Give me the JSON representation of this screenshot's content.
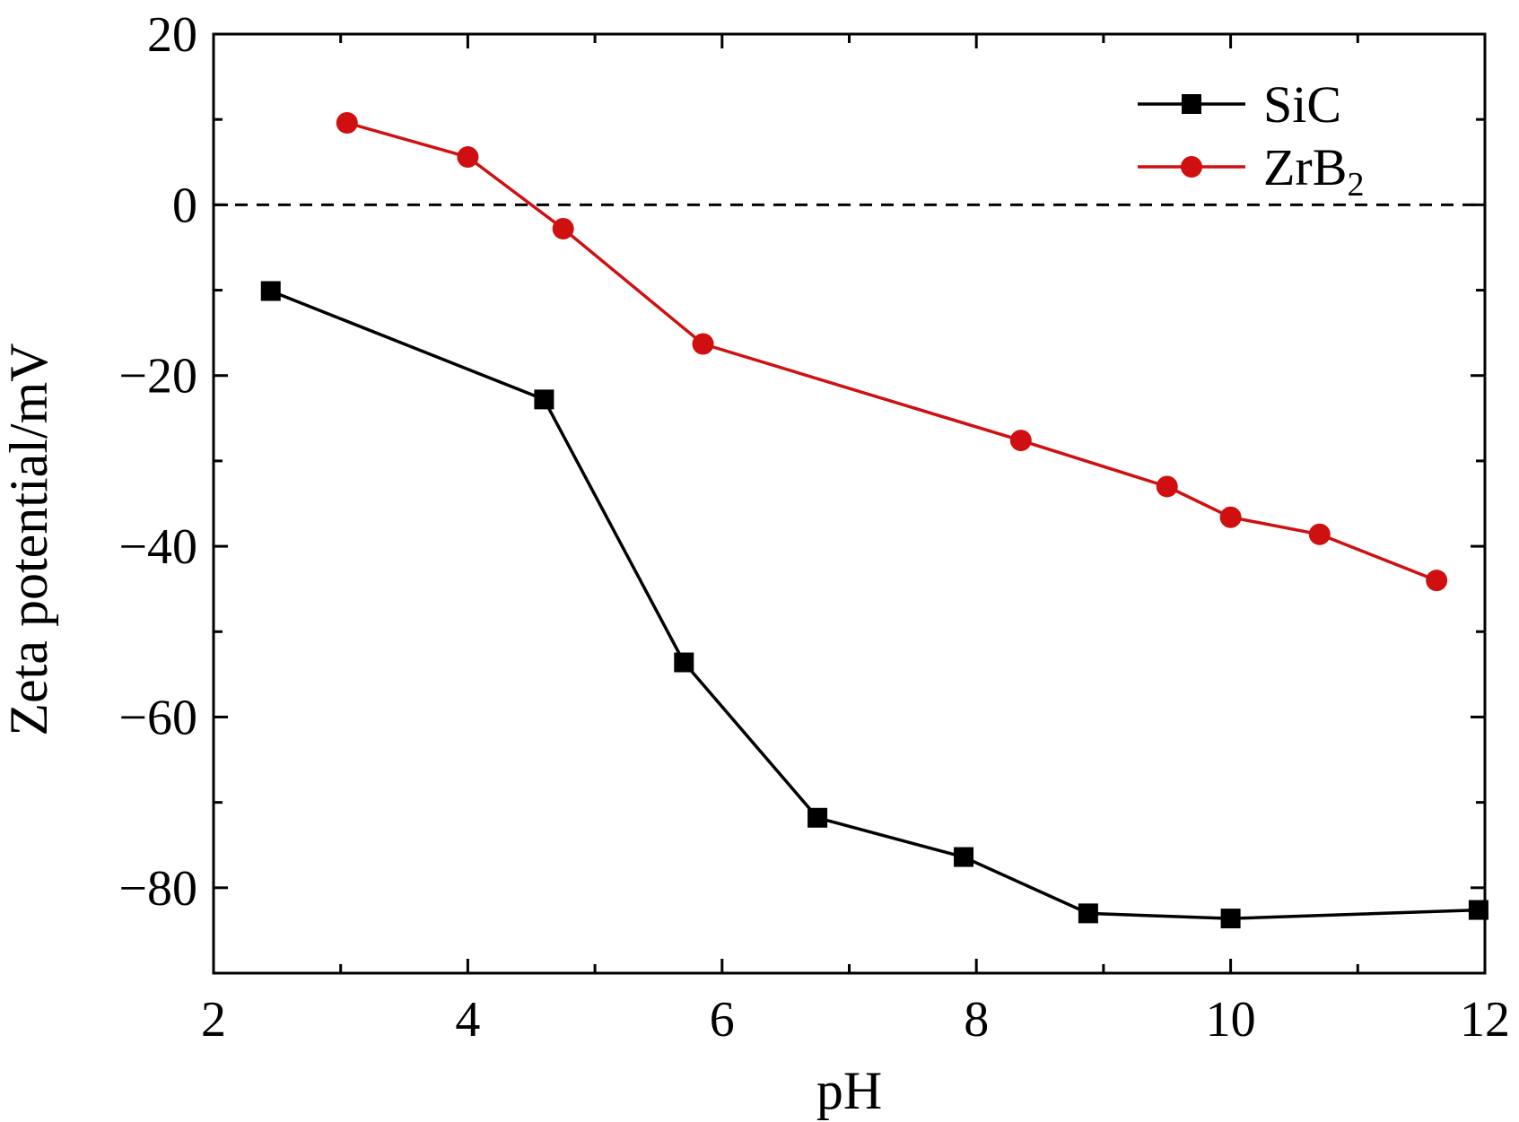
{
  "chart_data": {
    "type": "line",
    "title": "",
    "xlabel": "pH",
    "ylabel": "Zeta potential/mV",
    "xlim": [
      2,
      12
    ],
    "ylim": [
      -90,
      20
    ],
    "x_ticks": [
      2,
      4,
      6,
      8,
      10,
      12
    ],
    "x_tick_labels": [
      "2",
      "4",
      "6",
      "8",
      "10",
      "12"
    ],
    "x_minor_ticks": [
      3,
      5,
      7,
      9,
      11
    ],
    "y_ticks": [
      20,
      0,
      -20,
      -40,
      -60,
      -80
    ],
    "y_tick_labels": [
      "20",
      "0",
      "−20",
      "−40",
      "−60",
      "−80"
    ],
    "y_minor_ticks": [
      10,
      -10,
      -30,
      -50,
      -70
    ],
    "reference_line": {
      "y": 0,
      "style": "dashed",
      "color": "#000000"
    },
    "grid": false,
    "legend": {
      "position": "top-right"
    },
    "series": [
      {
        "name": "SiC",
        "name_base": "SiC",
        "name_sub": "",
        "color": "#000000",
        "marker": "square",
        "x": [
          2.45,
          4.6,
          5.7,
          6.75,
          7.9,
          8.88,
          10.0,
          11.95
        ],
        "y": [
          -10.1,
          -22.8,
          -53.6,
          -71.8,
          -76.4,
          -83.0,
          -83.6,
          -82.6
        ]
      },
      {
        "name": "ZrB2",
        "name_base": "ZrB",
        "name_sub": "2",
        "color": "#d01010",
        "marker": "circle",
        "x": [
          3.05,
          4.0,
          4.75,
          5.85,
          8.35,
          9.5,
          10.0,
          10.7,
          11.62
        ],
        "y": [
          9.6,
          5.6,
          -2.8,
          -16.3,
          -27.6,
          -33.0,
          -36.6,
          -38.6,
          -44.0
        ]
      }
    ]
  }
}
